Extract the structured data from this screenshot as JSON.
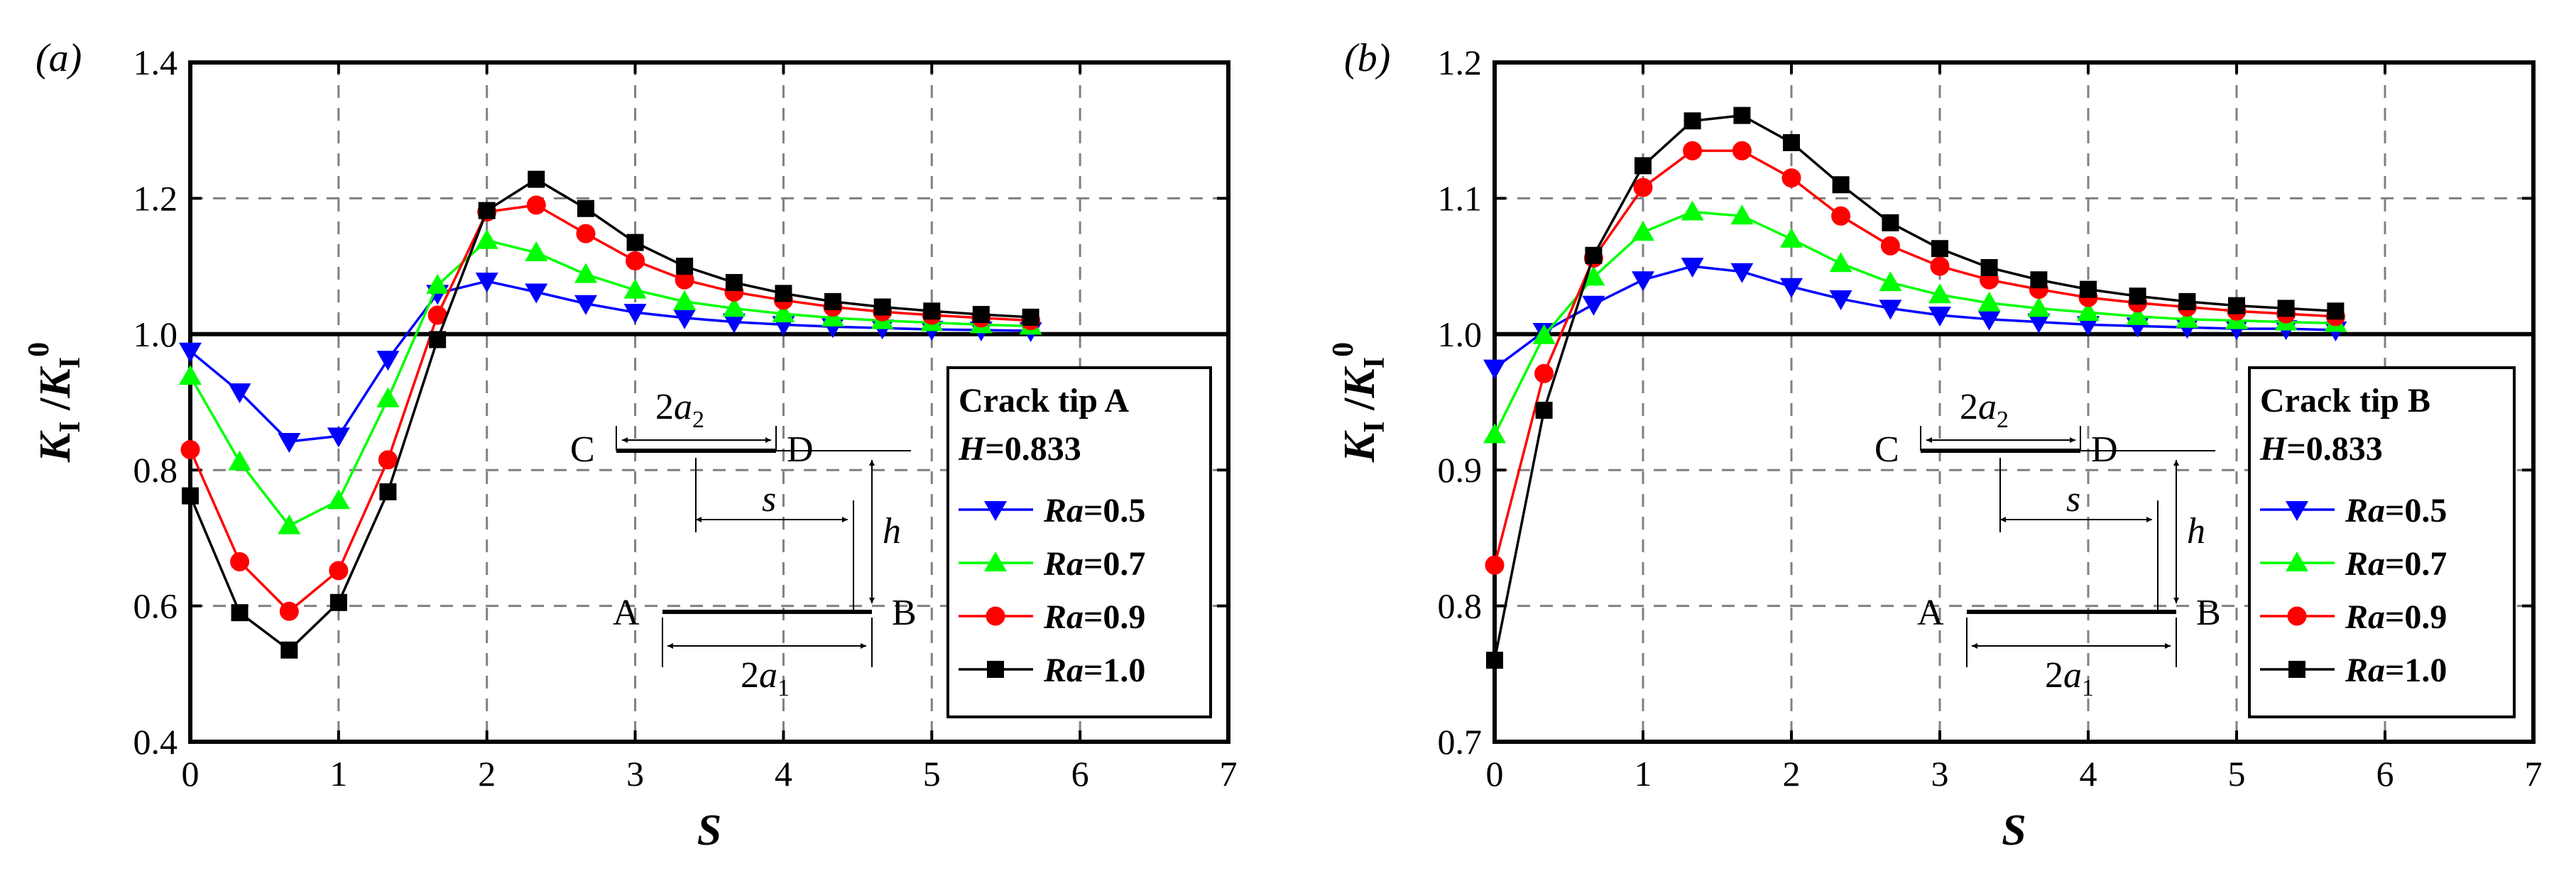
{
  "chart_data": [
    {
      "type": "line",
      "panel_label": "(a)",
      "xlabel": "S",
      "ylabel": "K_I / K_I^0",
      "xlim": [
        0,
        7
      ],
      "ylim": [
        0.4,
        1.4
      ],
      "xticks": [
        0,
        1,
        2,
        3,
        4,
        5,
        6,
        7
      ],
      "yticks": [
        0.4,
        0.6,
        0.8,
        1.0,
        1.2,
        1.4
      ],
      "x_tick_labels": [
        "0",
        "1",
        "2",
        "3",
        "4",
        "5",
        "6",
        "7"
      ],
      "y_tick_labels": [
        "0.4",
        "0.6",
        "0.8",
        "1.0",
        "1.2",
        "1.4"
      ],
      "reference_line": 1.0,
      "grid": "dashed",
      "legend": {
        "title": "Crack tip A",
        "param_name": "H",
        "param_value": "=0.833",
        "position": "lower-right"
      },
      "x": [
        0,
        0.333,
        0.667,
        1.0,
        1.333,
        1.667,
        2.0,
        2.333,
        2.667,
        3.0,
        3.333,
        3.667,
        4.0,
        4.333,
        4.667,
        5.0,
        5.333,
        5.667
      ],
      "series": [
        {
          "name": "Ra",
          "value_label": "=0.5",
          "color": "#0000ff",
          "marker": "triangle-down",
          "values": [
            0.975,
            0.915,
            0.842,
            0.85,
            0.963,
            1.06,
            1.078,
            1.062,
            1.045,
            1.032,
            1.024,
            1.018,
            1.014,
            1.011,
            1.009,
            1.007,
            1.006,
            1.005
          ]
        },
        {
          "name": "Ra",
          "value_label": "=0.7",
          "color": "#00ff00",
          "marker": "triangle-up",
          "values": [
            0.938,
            0.812,
            0.718,
            0.755,
            0.905,
            1.072,
            1.138,
            1.12,
            1.088,
            1.065,
            1.048,
            1.038,
            1.03,
            1.024,
            1.02,
            1.017,
            1.014,
            1.012
          ]
        },
        {
          "name": "Ra",
          "value_label": "=0.9",
          "color": "#ff0000",
          "marker": "circle",
          "values": [
            0.83,
            0.665,
            0.592,
            0.652,
            0.815,
            1.028,
            1.18,
            1.19,
            1.148,
            1.108,
            1.08,
            1.062,
            1.05,
            1.04,
            1.033,
            1.028,
            1.024,
            1.02
          ]
        },
        {
          "name": "Ra",
          "value_label": "=1.0",
          "color": "#000000",
          "marker": "square",
          "values": [
            0.762,
            0.59,
            0.535,
            0.605,
            0.768,
            0.992,
            1.182,
            1.228,
            1.185,
            1.135,
            1.1,
            1.076,
            1.06,
            1.048,
            1.04,
            1.034,
            1.029,
            1.025
          ]
        }
      ]
    },
    {
      "type": "line",
      "panel_label": "(b)",
      "xlabel": "S",
      "ylabel": "K_I / K_I^0",
      "xlim": [
        0,
        7
      ],
      "ylim": [
        0.7,
        1.2
      ],
      "xticks": [
        0,
        1,
        2,
        3,
        4,
        5,
        6,
        7
      ],
      "yticks": [
        0.7,
        0.8,
        0.9,
        1.0,
        1.1,
        1.2
      ],
      "x_tick_labels": [
        "0",
        "1",
        "2",
        "3",
        "4",
        "5",
        "6",
        "7"
      ],
      "y_tick_labels": [
        "0.7",
        "0.8",
        "0.9",
        "1.0",
        "1.1",
        "1.2"
      ],
      "reference_line": 1.0,
      "grid": "dashed",
      "legend": {
        "title": "Crack tip B",
        "param_name": "H",
        "param_value": "=0.833",
        "position": "lower-right"
      },
      "x": [
        0,
        0.333,
        0.667,
        1.0,
        1.333,
        1.667,
        2.0,
        2.333,
        2.667,
        3.0,
        3.333,
        3.667,
        4.0,
        4.333,
        4.667,
        5.0,
        5.333,
        5.667
      ],
      "series": [
        {
          "name": "Ra",
          "value_label": "=0.5",
          "color": "#0000ff",
          "marker": "triangle-down",
          "values": [
            0.975,
            1.002,
            1.022,
            1.04,
            1.05,
            1.046,
            1.035,
            1.026,
            1.019,
            1.014,
            1.011,
            1.009,
            1.007,
            1.006,
            1.005,
            1.004,
            1.004,
            1.003
          ]
        },
        {
          "name": "Ra",
          "value_label": "=0.7",
          "color": "#00ff00",
          "marker": "triangle-up",
          "values": [
            0.926,
            0.999,
            1.042,
            1.075,
            1.09,
            1.087,
            1.07,
            1.052,
            1.038,
            1.029,
            1.023,
            1.019,
            1.016,
            1.013,
            1.011,
            1.01,
            1.009,
            1.008
          ]
        },
        {
          "name": "Ra",
          "value_label": "=0.9",
          "color": "#ff0000",
          "marker": "circle",
          "values": [
            0.83,
            0.971,
            1.056,
            1.108,
            1.135,
            1.135,
            1.115,
            1.087,
            1.065,
            1.05,
            1.04,
            1.033,
            1.027,
            1.023,
            1.02,
            1.017,
            1.015,
            1.013
          ]
        },
        {
          "name": "Ra",
          "value_label": "=1.0",
          "color": "#000000",
          "marker": "square",
          "values": [
            0.76,
            0.944,
            1.058,
            1.124,
            1.157,
            1.161,
            1.141,
            1.11,
            1.082,
            1.063,
            1.049,
            1.04,
            1.033,
            1.028,
            1.024,
            1.021,
            1.019,
            1.017
          ]
        }
      ]
    }
  ],
  "schematics": [
    {
      "label_c": "C",
      "label_d": "D",
      "label_a": "A",
      "label_b": "B",
      "dim_top_coef": "2",
      "dim_top_var": "a",
      "dim_top_sub": "2",
      "dim_bottom_coef": "2",
      "dim_bottom_var": "a",
      "dim_bottom_sub": "1",
      "dim_s": "s",
      "dim_h": "h"
    },
    {
      "label_c": "C",
      "label_d": "D",
      "label_a": "A",
      "label_b": "B",
      "dim_top_coef": "2",
      "dim_top_var": "a",
      "dim_top_sub": "2",
      "dim_bottom_coef": "2",
      "dim_bottom_var": "a",
      "dim_bottom_sub": "1",
      "dim_s": "s",
      "dim_h": "h"
    }
  ],
  "ylabel_parts": {
    "k": "K",
    "sub": "I",
    "slash": " /",
    "sup": "0"
  }
}
